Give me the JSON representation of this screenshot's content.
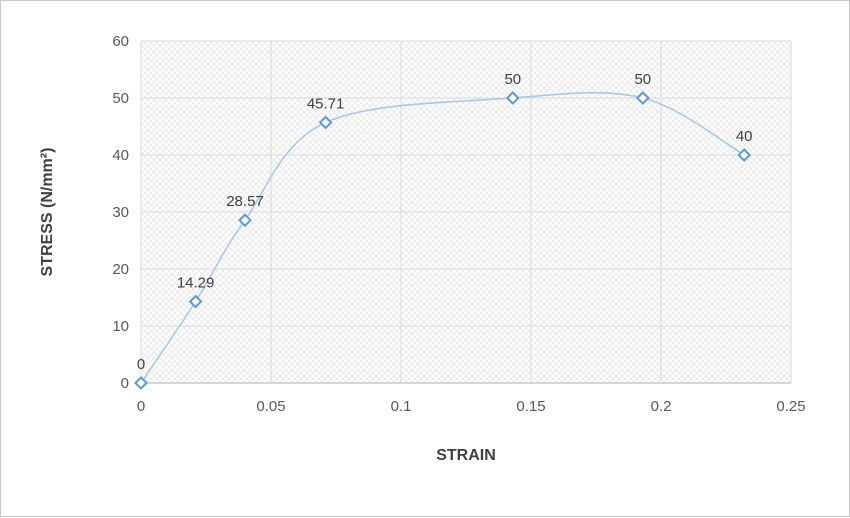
{
  "chart_data": {
    "type": "scatter",
    "title": "",
    "x": [
      0,
      0.021,
      0.04,
      0.071,
      0.143,
      0.193,
      0.232
    ],
    "y": [
      0,
      14.29,
      28.57,
      45.71,
      50,
      50,
      40
    ],
    "point_labels": [
      "0",
      "14.29",
      "28.57",
      "45.71",
      "50",
      "50",
      "40"
    ],
    "xlabel": "STRAIN",
    "ylabel": "STRESS (N/mm²)",
    "xlim": [
      0,
      0.25
    ],
    "ylim": [
      0,
      60
    ],
    "x_ticks": [
      0,
      0.05,
      0.1,
      0.15,
      0.2,
      0.25
    ],
    "x_tick_labels": [
      "0",
      "0.05",
      "0.1",
      "0.15",
      "0.2",
      "0.25"
    ],
    "y_ticks": [
      0,
      10,
      20,
      30,
      40,
      50,
      60
    ],
    "y_tick_labels": [
      "0",
      "10",
      "20",
      "30",
      "40",
      "50",
      "60"
    ],
    "grid": true,
    "legend": false,
    "marker_shape": "open-diamond",
    "line_style": "smooth",
    "plot_area_fill": "diagonal-crosshatch",
    "colors": {
      "line": "#aac7e8",
      "marker_stroke": "#5b9bd5",
      "marker_fill": "#ffffff",
      "gridline": "#d9d9d9",
      "axis_line": "#bfbfbf",
      "tick_text": "#595959",
      "label_text": "#404040",
      "hatch": "#e7e7e7",
      "frame_border": "#c8c8c8"
    }
  }
}
